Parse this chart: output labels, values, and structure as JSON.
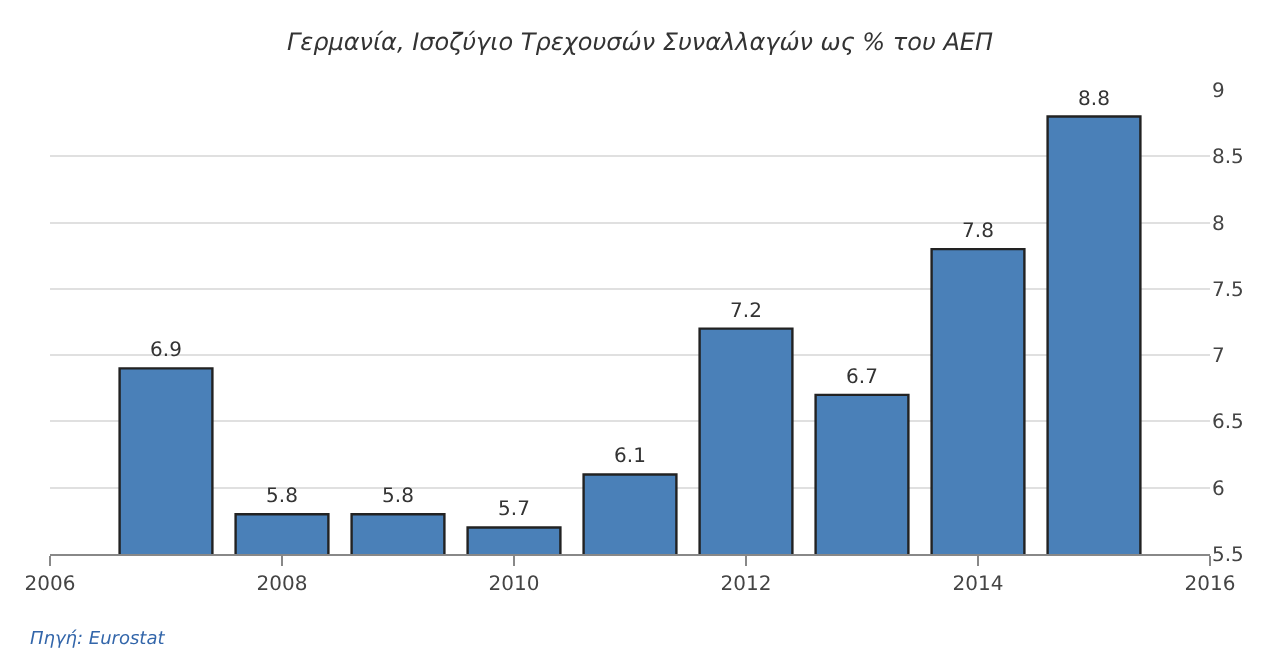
{
  "chart_data": {
    "type": "bar",
    "title": "Γερμανία, Ισοζύγιο Τρεχουσών Συναλλαγών ως % του ΑΕΠ",
    "x": [
      2007,
      2008,
      2009,
      2010,
      2011,
      2012,
      2013,
      2014,
      2015
    ],
    "values": [
      6.9,
      5.8,
      5.8,
      5.7,
      6.1,
      7.2,
      6.7,
      7.8,
      8.8
    ],
    "color": "#4a80b8",
    "xlim": [
      2006,
      2016
    ],
    "xticks": [
      2006,
      2008,
      2010,
      2012,
      2014,
      2016
    ],
    "ylim": [
      5.5,
      9
    ],
    "yticks": [
      5.5,
      6,
      6.5,
      7,
      7.5,
      8,
      8.5,
      9
    ],
    "grid": "y",
    "data_labels": true,
    "annotations": [
      "Πηγή: Eurostat"
    ]
  }
}
